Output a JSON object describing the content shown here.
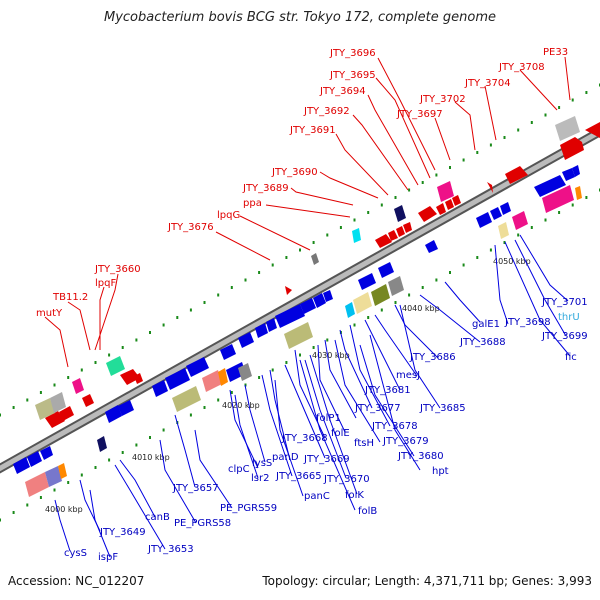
{
  "title": "Mycobacterium bovis BCG str. Tokyo 172, complete genome",
  "footer": {
    "accession": "Accession: NC_012207",
    "topology": "Topology: circular; Length: 4,371,711 bp; Genes: 3,993"
  },
  "colors": {
    "forward_gene": "#e00000",
    "reverse_gene": "#0000e0",
    "backbone": "#888888",
    "tick": "#1a8a1a",
    "trna_label": "#33aadd"
  },
  "scale_labels": [
    "4000 kbp",
    "4010 kbp",
    "4020 kbp",
    "4030 kbp",
    "4040 kbp",
    "4050 kbp"
  ],
  "forward_labels": [
    "JTY_3696",
    "PE33",
    "JTY_3708",
    "JTY_3695",
    "JTY_3704",
    "JTY_3694",
    "JTY_3702",
    "JTY_3692",
    "JTY_3697",
    "JTY_3691",
    "JTY_3690",
    "JTY_3689",
    "ppa",
    "lpqG",
    "JTY_3676",
    "JTY_3660",
    "lpqF",
    "TB11.2",
    "mutY"
  ],
  "reverse_labels": [
    "JTY_3701",
    "thrU",
    "JTY_3698",
    "JTY_3699",
    "fic",
    "galE1",
    "JTY_3688",
    "JTY_3686",
    "mesJ",
    "JTY_3681",
    "JTY_3685",
    "JTY_3677",
    "folP1",
    "JTY_3678",
    "folE",
    "ftsH",
    "JTY_3679",
    "JTY_3680",
    "hpt",
    "JTY_3668",
    "lysS",
    "panD",
    "JTY_3669",
    "JTY_3670",
    "clpC",
    "lsr2",
    "JTY_3665",
    "folK",
    "panC",
    "folB",
    "JTY_3657",
    "PE_PGRS59",
    "PE_PGRS58",
    "canB",
    "JTY_3653",
    "JTY_3649",
    "cysS",
    "ispF"
  ]
}
